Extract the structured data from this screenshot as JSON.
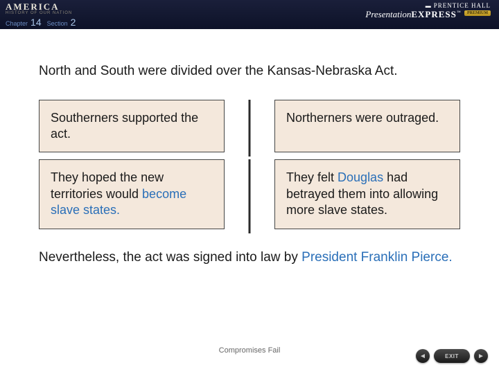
{
  "header": {
    "chapter_label": "Chapter",
    "chapter_num": "14",
    "section_label": "Section",
    "section_num": "2",
    "logo_main": "AMERICA",
    "logo_sub": "HISTORY OF OUR NATION",
    "ph_brand": "PRENTICE HALL",
    "pe_presentation": "Presentation",
    "pe_express": "EXPRESS",
    "pe_premium": "PREMIUM",
    "pe_tm": "™"
  },
  "content": {
    "main_text": "North and South were divided over the Kansas-Nebraska Act.",
    "boxes": {
      "row1_left": "Southerners supported the act.",
      "row1_right": "Northerners were outraged.",
      "row2_left_pre": "They hoped the new territories would ",
      "row2_left_kw": "become slave states.",
      "row2_right_pre": "They felt ",
      "row2_right_kw": "Douglas",
      "row2_right_post": " had betrayed them into allowing more slave states."
    },
    "conclusion_pre": "Nevertheless, the act was signed into law by ",
    "conclusion_kw": "President Franklin Pierce.",
    "footer_title": "Compromises Fail"
  },
  "nav": {
    "exit": "EXIT"
  },
  "colors": {
    "header_bg_top": "#1a1f3a",
    "header_bg_bottom": "#0d1228",
    "box_bg": "#f4e8dc",
    "box_border": "#444444",
    "keyword": "#2a6fb8",
    "text": "#1a1a1a",
    "divider": "#2a2a2a"
  }
}
